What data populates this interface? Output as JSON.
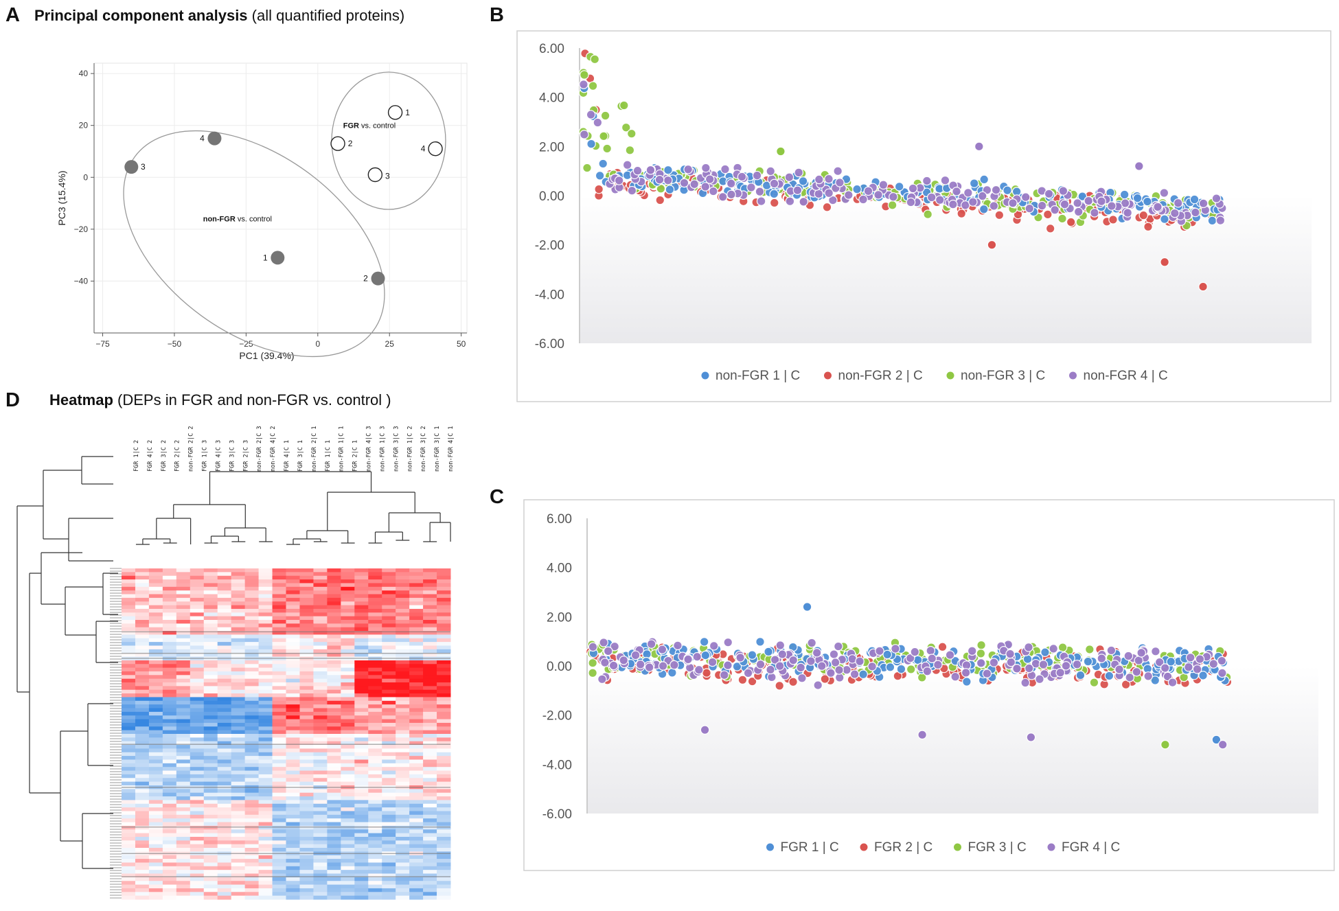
{
  "panels": {
    "a": {
      "letter": "A",
      "title_bold": "Principal component analysis",
      "title_rest": "(all quantified proteins)"
    },
    "b": {
      "letter": "B"
    },
    "c": {
      "letter": "C"
    },
    "d": {
      "letter": "D",
      "title_bold": "Heatmap",
      "title_rest": "(DEPs in FGR and non-FGR vs. control )"
    }
  },
  "colors": {
    "blue": "#4f8fd6",
    "red": "#d9534f",
    "green": "#8fc743",
    "purple": "#9b7cc6",
    "filled_point": "#757575",
    "heat_high": "#e8161c",
    "heat_low": "#3f8fe0"
  },
  "chart_data": [
    {
      "id": "pca",
      "type": "scatter",
      "xlabel": "PC1 (39.4%)",
      "ylabel": "PC3 (15.4%)",
      "xlim": [
        -78,
        52
      ],
      "ylim": [
        -60,
        44
      ],
      "xticks": [
        -75,
        -50,
        -25,
        0,
        25,
        50
      ],
      "yticks": [
        -40,
        -20,
        0,
        20,
        40
      ],
      "series": [
        {
          "name": "non-FGR vs. control",
          "style": "filled",
          "points": [
            {
              "label": "1",
              "x": -14,
              "y": -31
            },
            {
              "label": "2",
              "x": 21,
              "y": -39
            },
            {
              "label": "3",
              "x": -65,
              "y": 4
            },
            {
              "label": "4",
              "x": -36,
              "y": 15
            }
          ]
        },
        {
          "name": "FGR vs. control",
          "style": "open",
          "points": [
            {
              "label": "1",
              "x": 27,
              "y": 25
            },
            {
              "label": "2",
              "x": 7,
              "y": 13
            },
            {
              "label": "3",
              "x": 20,
              "y": 1
            },
            {
              "label": "4",
              "x": 41,
              "y": 11
            }
          ]
        }
      ],
      "group_labels": [
        {
          "bold": "non-FGR",
          "rest": "vs. control",
          "x": -28,
          "y": -17
        },
        {
          "bold": "FGR",
          "rest": "vs. control",
          "x": 18,
          "y": 19
        }
      ]
    },
    {
      "id": "scatter_nonfgr",
      "type": "scatter",
      "ylim": [
        -6,
        6
      ],
      "yticks": [
        "6.00",
        "4.00",
        "2.00",
        "0.00",
        "-2.00",
        "-4.00",
        "-6.00"
      ],
      "series": [
        {
          "name": "non-FGR 1 | C",
          "color_key": "blue"
        },
        {
          "name": "non-FGR 2 | C",
          "color_key": "red"
        },
        {
          "name": "non-FGR 3 | C",
          "color_key": "green"
        },
        {
          "name": "non-FGR 4 | C",
          "color_key": "purple"
        }
      ],
      "trend": {
        "start": 0.8,
        "end": -0.6,
        "spread": 0.6,
        "head_peak": 5.9
      },
      "outliers": [
        {
          "series": 3,
          "x": 0.62,
          "y": 2.0
        },
        {
          "series": 1,
          "x": 0.64,
          "y": -2.0
        },
        {
          "series": 1,
          "x": 0.97,
          "y": -3.7
        },
        {
          "series": 1,
          "x": 0.91,
          "y": -2.7
        },
        {
          "series": 2,
          "x": 0.31,
          "y": 1.8
        },
        {
          "series": 3,
          "x": 0.87,
          "y": 1.2
        }
      ]
    },
    {
      "id": "scatter_fgr",
      "type": "scatter",
      "ylim": [
        -6,
        6
      ],
      "yticks": [
        "6.00",
        "4.00",
        "2.00",
        "0.00",
        "-2.00",
        "-4.00",
        "-6.00"
      ],
      "series": [
        {
          "name": "FGR 1 | C",
          "color_key": "blue"
        },
        {
          "name": "FGR 2 | C",
          "color_key": "red"
        },
        {
          "name": "FGR 3 | C",
          "color_key": "green"
        },
        {
          "name": "FGR 4 | C",
          "color_key": "purple"
        }
      ],
      "trend": {
        "start": 0.3,
        "end": 0.1,
        "spread": 0.7,
        "head_peak": 0
      },
      "outliers": [
        {
          "series": 0,
          "x": 0.34,
          "y": 2.4
        },
        {
          "series": 3,
          "x": 0.18,
          "y": -2.6
        },
        {
          "series": 3,
          "x": 0.52,
          "y": -2.8
        },
        {
          "series": 2,
          "x": 0.9,
          "y": -3.2
        },
        {
          "series": 0,
          "x": 0.98,
          "y": -3.0
        },
        {
          "series": 3,
          "x": 0.99,
          "y": -3.2
        },
        {
          "series": 3,
          "x": 0.69,
          "y": -2.9
        }
      ]
    },
    {
      "id": "heatmap",
      "type": "heatmap",
      "columns": [
        "FGR 1|C 2",
        "FGR 4|C 2",
        "FGR 3|C 2",
        "FGR 2|C 2",
        "non-FGR 2|C 2",
        "FGR 1|C 3",
        "FGR 4|C 3",
        "FGR 3|C 3",
        "FGR 2|C 3",
        "non-FGR 2|C 3",
        "non-FGR 4|C 2",
        "FGR 4|C 1",
        "FGR 3|C 1",
        "non-FGR 2|C 1",
        "FGR 1|C 1",
        "non-FGR 1|C 1",
        "FGR 2|C 1",
        "non-FGR 4|C 3",
        "non-FGR 1|C 3",
        "non-FGR 3|C 3",
        "non-FGR 1|C 2",
        "non-FGR 3|C 2",
        "non-FGR 3|C 1",
        "non-FGR 4|C 1"
      ]
    }
  ]
}
